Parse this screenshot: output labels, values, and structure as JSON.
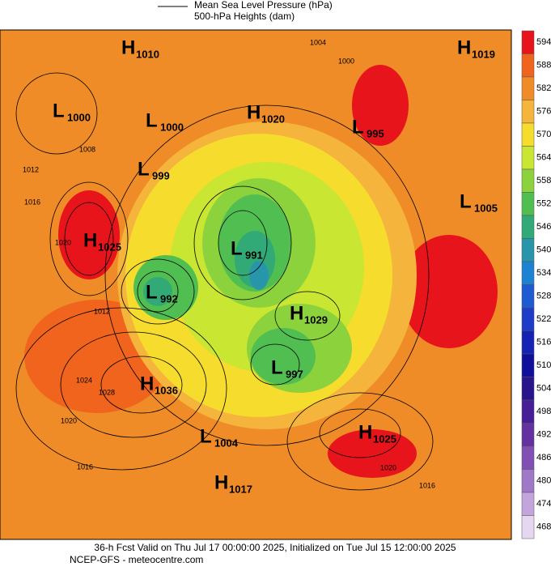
{
  "header": {
    "line1": "Mean Sea Level Pressure (hPa)",
    "line2": "500-hPa Heights (dam)"
  },
  "colorbar": {
    "levels": [
      594,
      588,
      582,
      576,
      570,
      564,
      558,
      552,
      546,
      540,
      534,
      528,
      522,
      516,
      510,
      504,
      498,
      492,
      486,
      480,
      474,
      468
    ],
    "colors": [
      "#e8141c",
      "#f0641e",
      "#f08c28",
      "#f5b43c",
      "#f5dc2d",
      "#c8e632",
      "#8cd23c",
      "#50be50",
      "#32aa78",
      "#2896aa",
      "#1e82d2",
      "#1e5ad2",
      "#1e3cc8",
      "#1423b4",
      "#0f0f9b",
      "#28148c",
      "#461e96",
      "#6432a0",
      "#8250b4",
      "#a078c8",
      "#c3a5dc",
      "#e6d7f0"
    ]
  },
  "centers": [
    {
      "letter": "H",
      "value": 1010
    },
    {
      "letter": "L",
      "value": 1000
    },
    {
      "letter": "L",
      "value": 1000
    },
    {
      "letter": "H",
      "value": 1020
    },
    {
      "letter": "L",
      "value": 995
    },
    {
      "letter": "H",
      "value": 1019
    },
    {
      "letter": "L",
      "value": 999
    },
    {
      "letter": "L",
      "value": 1005
    },
    {
      "letter": "H",
      "value": 1025
    },
    {
      "letter": "L",
      "value": 991
    },
    {
      "letter": "L",
      "value": 992
    },
    {
      "letter": "H",
      "value": 1029
    },
    {
      "letter": "L",
      "value": 997
    },
    {
      "letter": "H",
      "value": 1036
    },
    {
      "letter": "L",
      "value": 1004
    },
    {
      "letter": "H",
      "value": 1025
    },
    {
      "letter": "H",
      "value": 1017
    }
  ],
  "isobar_labels": [
    1004,
    1000,
    1008,
    1012,
    1016,
    1020,
    1024,
    1028,
    1020,
    1016,
    1012,
    1020,
    1016
  ],
  "footer": {
    "line1": "36-h Fcst Valid on Thu Jul 17 00:00:00 2025, Initialized on Tue Jul 15 12:00:00 2025",
    "line2": "NCEP-GFS  - meteocentre.com"
  }
}
